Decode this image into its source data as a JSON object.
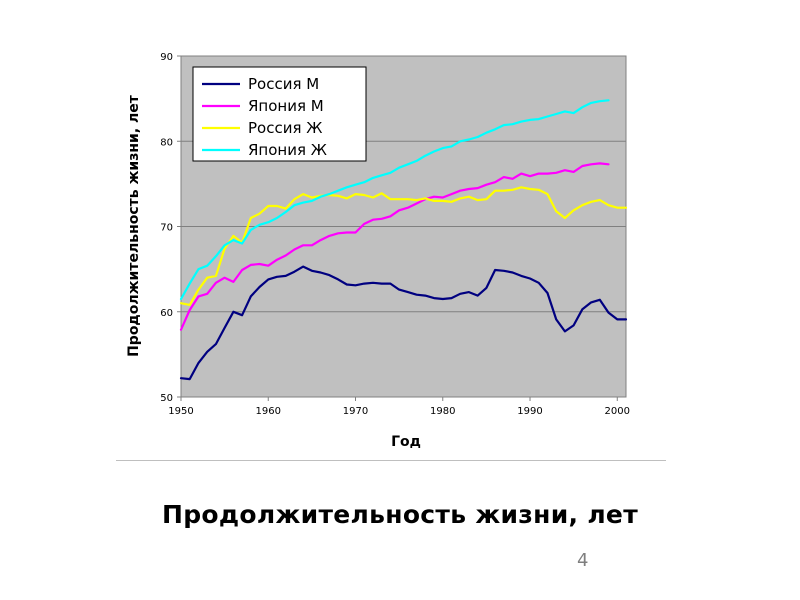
{
  "slide": {
    "title": "Продолжительность жизни, лет",
    "page_number": "4"
  },
  "chart_data": {
    "type": "line",
    "xlabel": "Год",
    "ylabel": "Продолжительность жизни, лет",
    "xlim": [
      1950,
      2001
    ],
    "ylim": [
      50,
      90
    ],
    "x_ticks": [
      "1950",
      "1960",
      "1970",
      "1980",
      "1990",
      "2000"
    ],
    "y_ticks": [
      "50",
      "60",
      "70",
      "80",
      "90"
    ],
    "grid": "horizontal",
    "plot_background": "#c0c0c0",
    "legend_position": "top-left",
    "series": [
      {
        "name": "Россия М",
        "color": "#000080",
        "x": [
          1950,
          1951,
          1952,
          1953,
          1954,
          1955,
          1956,
          1957,
          1958,
          1959,
          1960,
          1961,
          1962,
          1963,
          1964,
          1965,
          1966,
          1967,
          1968,
          1969,
          1970,
          1971,
          1972,
          1973,
          1974,
          1975,
          1976,
          1977,
          1978,
          1979,
          1980,
          1981,
          1982,
          1983,
          1984,
          1985,
          1986,
          1987,
          1988,
          1989,
          1990,
          1991,
          1992,
          1993,
          1994,
          1995,
          1996,
          1997,
          1998,
          1999,
          2000,
          2001
        ],
        "y": [
          52.2,
          52.1,
          54,
          55.3,
          56.2,
          58.1,
          60,
          59.6,
          61.8,
          62.9,
          63.8,
          64.1,
          64.2,
          64.7,
          65.3,
          64.8,
          64.6,
          64.3,
          63.8,
          63.2,
          63.1,
          63.3,
          63.4,
          63.3,
          63.3,
          62.6,
          62.3,
          62,
          61.9,
          61.6,
          61.5,
          61.6,
          62.1,
          62.3,
          61.9,
          62.8,
          64.9,
          64.8,
          64.6,
          64.2,
          63.9,
          63.4,
          62.2,
          59.1,
          57.7,
          58.4,
          60.3,
          61.1,
          61.4,
          59.9,
          59.1,
          59.1
        ]
      },
      {
        "name": "Япония М",
        "color": "#ff00ff",
        "x": [
          1950,
          1951,
          1952,
          1953,
          1954,
          1955,
          1956,
          1957,
          1958,
          1959,
          1960,
          1961,
          1962,
          1963,
          1964,
          1965,
          1966,
          1967,
          1968,
          1969,
          1970,
          1971,
          1972,
          1973,
          1974,
          1975,
          1976,
          1977,
          1978,
          1979,
          1980,
          1981,
          1982,
          1983,
          1984,
          1985,
          1986,
          1987,
          1988,
          1989,
          1990,
          1991,
          1992,
          1993,
          1994,
          1995,
          1996,
          1997,
          1998,
          1999
        ],
        "y": [
          57.9,
          60.2,
          61.8,
          62.1,
          63.4,
          64,
          63.5,
          64.9,
          65.5,
          65.6,
          65.4,
          66.1,
          66.6,
          67.3,
          67.8,
          67.8,
          68.4,
          68.9,
          69.2,
          69.3,
          69.3,
          70.3,
          70.8,
          70.9,
          71.2,
          71.9,
          72.2,
          72.7,
          73.2,
          73.5,
          73.4,
          73.8,
          74.2,
          74.4,
          74.5,
          74.9,
          75.2,
          75.8,
          75.6,
          76.2,
          75.9,
          76.2,
          76.2,
          76.3,
          76.6,
          76.4,
          77.1,
          77.3,
          77.4,
          77.3
        ]
      },
      {
        "name": "Россия Ж",
        "color": "#ffff00",
        "x": [
          1950,
          1951,
          1952,
          1953,
          1954,
          1955,
          1956,
          1957,
          1958,
          1959,
          1960,
          1961,
          1962,
          1963,
          1964,
          1965,
          1966,
          1967,
          1968,
          1969,
          1970,
          1971,
          1972,
          1973,
          1974,
          1975,
          1976,
          1977,
          1978,
          1979,
          1980,
          1981,
          1982,
          1983,
          1984,
          1985,
          1986,
          1987,
          1988,
          1989,
          1990,
          1991,
          1992,
          1993,
          1994,
          1995,
          1996,
          1997,
          1998,
          1999,
          2000,
          2001
        ],
        "y": [
          61,
          60.8,
          62.6,
          64,
          64.2,
          67.4,
          68.9,
          68.1,
          71,
          71.5,
          72.4,
          72.4,
          72.1,
          73.2,
          73.8,
          73.4,
          73.6,
          73.7,
          73.6,
          73.3,
          73.8,
          73.7,
          73.4,
          73.9,
          73.2,
          73.2,
          73.2,
          73.1,
          73.3,
          73,
          73,
          72.9,
          73.3,
          73.5,
          73.1,
          73.2,
          74.2,
          74.2,
          74.3,
          74.6,
          74.4,
          74.3,
          73.8,
          71.8,
          71,
          71.9,
          72.5,
          72.9,
          73.1,
          72.5,
          72.2,
          72.2
        ]
      },
      {
        "name": "Япония Ж",
        "color": "#00ffff",
        "x": [
          1950,
          1951,
          1952,
          1953,
          1954,
          1955,
          1956,
          1957,
          1958,
          1959,
          1960,
          1961,
          1962,
          1963,
          1964,
          1965,
          1966,
          1967,
          1968,
          1969,
          1970,
          1971,
          1972,
          1973,
          1974,
          1975,
          1976,
          1977,
          1978,
          1979,
          1980,
          1981,
          1982,
          1983,
          1984,
          1985,
          1986,
          1987,
          1988,
          1989,
          1990,
          1991,
          1992,
          1993,
          1994,
          1995,
          1996,
          1997,
          1998,
          1999
        ],
        "y": [
          61.5,
          63.3,
          65,
          65.4,
          66.5,
          67.8,
          68.4,
          68,
          69.6,
          70.2,
          70.5,
          71,
          71.7,
          72.5,
          72.8,
          73,
          73.5,
          73.8,
          74.2,
          74.6,
          74.9,
          75.2,
          75.7,
          76,
          76.3,
          76.9,
          77.3,
          77.7,
          78.3,
          78.8,
          79.2,
          79.4,
          80,
          80.2,
          80.5,
          81,
          81.4,
          81.9,
          82,
          82.3,
          82.5,
          82.6,
          82.9,
          83.2,
          83.5,
          83.3,
          84,
          84.5,
          84.7,
          84.8
        ]
      }
    ]
  }
}
